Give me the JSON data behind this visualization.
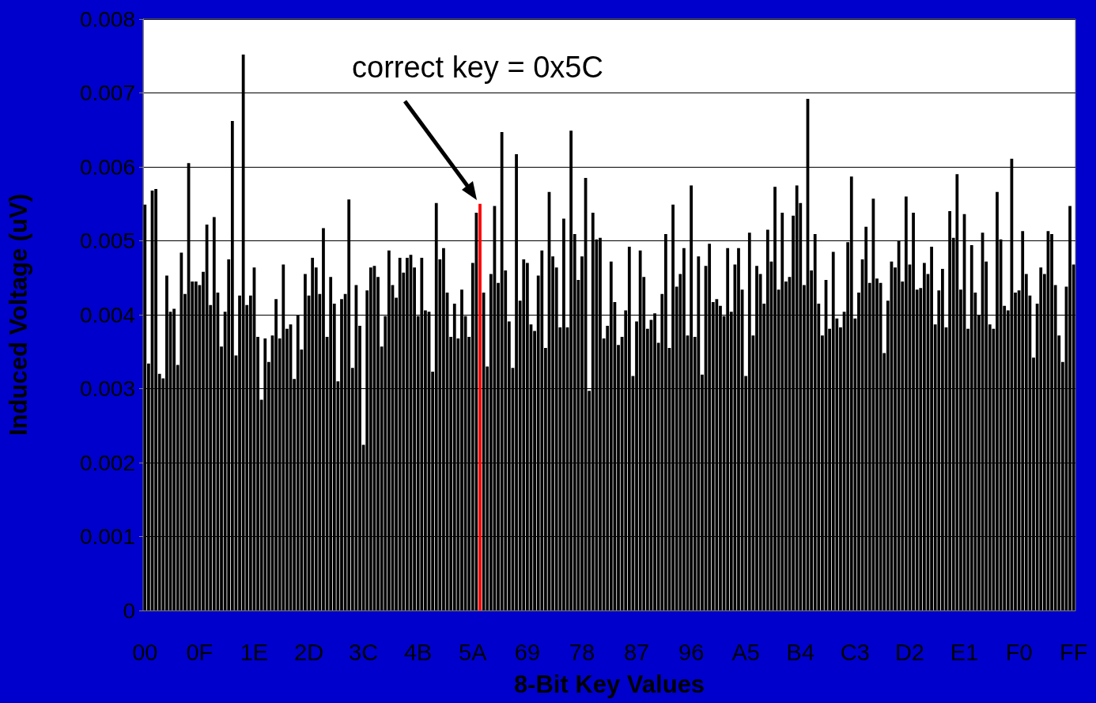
{
  "chart_data": {
    "type": "bar",
    "xlabel": "8-Bit Key Values",
    "ylabel": "Induced Voltage (uV)",
    "annotations": [
      "correct key = 0x5C"
    ],
    "grid": "y",
    "ylim": [
      0,
      0.008
    ],
    "yticks": [
      0,
      0.001,
      0.002,
      0.003,
      0.004,
      0.005,
      0.006,
      0.007,
      0.008
    ],
    "categories": [
      "00",
      null,
      null,
      null,
      null,
      null,
      null,
      null,
      null,
      null,
      null,
      null,
      null,
      null,
      null,
      "0F",
      null,
      null,
      null,
      null,
      null,
      null,
      null,
      null,
      null,
      null,
      null,
      null,
      null,
      null,
      "1E",
      null,
      null,
      null,
      null,
      null,
      null,
      null,
      null,
      null,
      null,
      null,
      null,
      null,
      null,
      "2D",
      null,
      null,
      null,
      null,
      null,
      null,
      null,
      null,
      null,
      null,
      null,
      null,
      null,
      null,
      "3C",
      null,
      null,
      null,
      null,
      null,
      null,
      null,
      null,
      null,
      null,
      null,
      null,
      null,
      null,
      "4B",
      null,
      null,
      null,
      null,
      null,
      null,
      null,
      null,
      null,
      null,
      null,
      null,
      null,
      null,
      "5A",
      null,
      null,
      null,
      null,
      null,
      null,
      null,
      null,
      null,
      null,
      null,
      null,
      null,
      null,
      "69",
      null,
      null,
      null,
      null,
      null,
      null,
      null,
      null,
      null,
      null,
      null,
      null,
      null,
      null,
      "78",
      null,
      null,
      null,
      null,
      null,
      null,
      null,
      null,
      null,
      null,
      null,
      null,
      null,
      null,
      "87",
      null,
      null,
      null,
      null,
      null,
      null,
      null,
      null,
      null,
      null,
      null,
      null,
      null,
      null,
      "96",
      null,
      null,
      null,
      null,
      null,
      null,
      null,
      null,
      null,
      null,
      null,
      null,
      null,
      null,
      "A5",
      null,
      null,
      null,
      null,
      null,
      null,
      null,
      null,
      null,
      null,
      null,
      null,
      null,
      null,
      "B4",
      null,
      null,
      null,
      null,
      null,
      null,
      null,
      null,
      null,
      null,
      null,
      null,
      null,
      null,
      "C3",
      null,
      null,
      null,
      null,
      null,
      null,
      null,
      null,
      null,
      null,
      null,
      null,
      null,
      null,
      "D2",
      null,
      null,
      null,
      null,
      null,
      null,
      null,
      null,
      null,
      null,
      null,
      null,
      null,
      null,
      "E1",
      null,
      null,
      null,
      null,
      null,
      null,
      null,
      null,
      null,
      null,
      null,
      null,
      null,
      null,
      "F0",
      null,
      null,
      null,
      null,
      null,
      null,
      null,
      null,
      null,
      null,
      null,
      null,
      null,
      null,
      "FF"
    ],
    "values": [
      0.00549,
      0.00334,
      0.00568,
      0.0057,
      0.0032,
      0.00314,
      0.00453,
      0.00404,
      0.00408,
      0.00332,
      0.00484,
      0.00428,
      0.00605,
      0.00445,
      0.00445,
      0.0044,
      0.00458,
      0.00522,
      0.00413,
      0.00532,
      0.0043,
      0.00357,
      0.00404,
      0.00475,
      0.00662,
      0.00345,
      0.00426,
      0.00752,
      0.00413,
      0.00426,
      0.00464,
      0.0037,
      0.00285,
      0.00368,
      0.00336,
      0.00372,
      0.00421,
      0.00368,
      0.00468,
      0.00381,
      0.00387,
      0.00313,
      0.004,
      0.00353,
      0.00455,
      0.00426,
      0.00477,
      0.00464,
      0.00428,
      0.00517,
      0.0037,
      0.00451,
      0.00415,
      0.0031,
      0.00421,
      0.00428,
      0.00556,
      0.00328,
      0.0044,
      0.00385,
      0.00224,
      0.00433,
      0.00464,
      0.00466,
      0.00451,
      0.00357,
      0.00398,
      0.00487,
      0.0044,
      0.00423,
      0.00477,
      0.00457,
      0.00477,
      0.00481,
      0.00464,
      0.00398,
      0.00477,
      0.00406,
      0.00404,
      0.00323,
      0.00551,
      0.00475,
      0.0049,
      0.0043,
      0.0037,
      0.00415,
      0.00368,
      0.00434,
      0.00398,
      0.0037,
      0.0047,
      0.00538,
      0.0055,
      0.0043,
      0.0033,
      0.00455,
      0.00547,
      0.00443,
      0.00647,
      0.0046,
      0.00391,
      0.00328,
      0.00617,
      0.00419,
      0.00475,
      0.0047,
      0.00387,
      0.00378,
      0.00453,
      0.00487,
      0.00355,
      0.00566,
      0.00479,
      0.00464,
      0.00383,
      0.0053,
      0.00383,
      0.00649,
      0.00509,
      0.00447,
      0.00479,
      0.00585,
      0.00297,
      0.00538,
      0.00502,
      0.00504,
      0.00368,
      0.00385,
      0.00472,
      0.00417,
      0.00359,
      0.0037,
      0.00406,
      0.00492,
      0.00317,
      0.00391,
      0.00487,
      0.00451,
      0.00381,
      0.00393,
      0.00402,
      0.00362,
      0.00428,
      0.00509,
      0.00355,
      0.00549,
      0.00438,
      0.00455,
      0.0049,
      0.00372,
      0.00575,
      0.0037,
      0.00479,
      0.00319,
      0.00466,
      0.00496,
      0.00417,
      0.00421,
      0.00412,
      0.00398,
      0.0049,
      0.00404,
      0.00468,
      0.0049,
      0.00434,
      0.00317,
      0.00511,
      0.00372,
      0.00466,
      0.00455,
      0.00415,
      0.00515,
      0.00472,
      0.00573,
      0.00434,
      0.00538,
      0.00445,
      0.00451,
      0.00534,
      0.00575,
      0.00551,
      0.0044,
      0.00692,
      0.0046,
      0.00509,
      0.00415,
      0.00372,
      0.00447,
      0.00381,
      0.00485,
      0.00395,
      0.00383,
      0.00404,
      0.00498,
      0.00587,
      0.00395,
      0.0043,
      0.00475,
      0.00519,
      0.00443,
      0.00557,
      0.00449,
      0.00443,
      0.00348,
      0.00419,
      0.00472,
      0.00464,
      0.005,
      0.00445,
      0.0056,
      0.00468,
      0.00538,
      0.00434,
      0.00436,
      0.0047,
      0.00455,
      0.00492,
      0.00387,
      0.00433,
      0.00462,
      0.00383,
      0.0054,
      0.00504,
      0.0059,
      0.00434,
      0.00536,
      0.00381,
      0.00494,
      0.0043,
      0.004,
      0.00511,
      0.00472,
      0.00387,
      0.00381,
      0.00566,
      0.00502,
      0.00412,
      0.00406,
      0.00611,
      0.0043,
      0.00433,
      0.00513,
      0.00455,
      0.00426,
      0.00342,
      0.00415,
      0.00464,
      0.00455,
      0.00513,
      0.00509,
      0.0044,
      0.00372,
      0.00336,
      0.00438,
      0.00547,
      0.00468
    ],
    "colors": [
      "#000000",
      "#000000",
      "#000000",
      "#000000",
      "#000000",
      "#000000",
      "#000000",
      "#000000",
      "#000000",
      "#000000",
      "#000000",
      "#000000",
      "#000000",
      "#000000",
      "#000000",
      "#000000",
      "#000000",
      "#000000",
      "#000000",
      "#000000",
      "#000000",
      "#000000",
      "#000000",
      "#000000",
      "#000000",
      "#000000",
      "#000000",
      "#000000",
      "#000000",
      "#000000",
      "#000000",
      "#000000",
      "#000000",
      "#000000",
      "#000000",
      "#000000",
      "#000000",
      "#000000",
      "#000000",
      "#000000",
      "#000000",
      "#000000",
      "#000000",
      "#000000",
      "#000000",
      "#000000",
      "#000000",
      "#000000",
      "#000000",
      "#000000",
      "#000000",
      "#000000",
      "#000000",
      "#000000",
      "#000000",
      "#000000",
      "#000000",
      "#000000",
      "#000000",
      "#000000",
      "#000000",
      "#000000",
      "#000000",
      "#000000",
      "#000000",
      "#000000",
      "#000000",
      "#000000",
      "#000000",
      "#000000",
      "#000000",
      "#000000",
      "#000000",
      "#000000",
      "#000000",
      "#000000",
      "#000000",
      "#000000",
      "#000000",
      "#000000",
      "#000000",
      "#000000",
      "#000000",
      "#000000",
      "#000000",
      "#000000",
      "#000000",
      "#000000",
      "#000000",
      "#000000",
      "#000000",
      "#000000",
      "#ff0000",
      "#000000",
      "#000000",
      "#000000",
      "#000000",
      "#000000",
      "#000000",
      "#000000",
      "#000000",
      "#000000",
      "#000000",
      "#000000",
      "#000000",
      "#000000",
      "#000000",
      "#000000",
      "#000000",
      "#000000",
      "#000000",
      "#000000",
      "#000000",
      "#000000",
      "#000000",
      "#000000",
      "#000000",
      "#000000",
      "#000000",
      "#000000",
      "#000000",
      "#000000",
      "#000000",
      "#000000",
      "#000000",
      "#000000",
      "#000000",
      "#000000",
      "#000000",
      "#000000",
      "#000000",
      "#000000",
      "#000000",
      "#000000",
      "#000000",
      "#000000",
      "#000000",
      "#000000",
      "#000000",
      "#000000",
      "#000000",
      "#000000",
      "#000000",
      "#000000",
      "#000000",
      "#000000",
      "#000000",
      "#000000",
      "#000000",
      "#000000",
      "#000000",
      "#000000",
      "#000000",
      "#000000",
      "#000000",
      "#000000",
      "#000000",
      "#000000",
      "#000000",
      "#000000",
      "#000000",
      "#000000",
      "#000000",
      "#000000",
      "#000000",
      "#000000",
      "#000000",
      "#000000",
      "#000000",
      "#000000",
      "#000000",
      "#000000",
      "#000000",
      "#000000",
      "#000000",
      "#000000",
      "#000000",
      "#000000",
      "#000000",
      "#000000",
      "#000000",
      "#000000",
      "#000000",
      "#000000",
      "#000000",
      "#000000",
      "#000000",
      "#000000",
      "#000000",
      "#000000",
      "#000000",
      "#000000",
      "#000000",
      "#000000",
      "#000000",
      "#000000",
      "#000000",
      "#000000",
      "#000000",
      "#000000",
      "#000000",
      "#000000",
      "#000000",
      "#000000",
      "#000000",
      "#000000",
      "#000000",
      "#000000",
      "#000000",
      "#000000",
      "#000000",
      "#000000",
      "#000000",
      "#000000",
      "#000000",
      "#000000",
      "#000000",
      "#000000",
      "#000000",
      "#000000",
      "#000000",
      "#000000",
      "#000000",
      "#000000",
      "#000000",
      "#000000",
      "#000000",
      "#000000",
      "#000000",
      "#000000",
      "#000000",
      "#000000",
      "#000000",
      "#000000",
      "#000000",
      "#000000",
      "#000000",
      "#000000",
      "#000000",
      "#000000",
      "#000000",
      "#000000",
      "#000000",
      "#000000",
      "#000000",
      "#000000",
      "#000000",
      "#000000",
      "#000000",
      "#000000",
      "#000000",
      "#000000",
      "#000000",
      "#000000",
      "#000000",
      "#000000"
    ]
  }
}
